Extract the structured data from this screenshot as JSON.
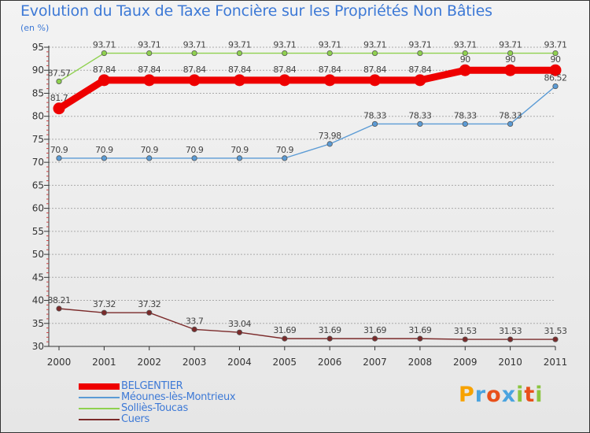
{
  "header": {
    "title": "Evolution du Taux de Taxe Foncière sur les Propriétés Non Bâties",
    "unit": "(en %)"
  },
  "colors": {
    "BELGENTIER": "#ee0000",
    "Méounes-lès-Montrieux": "#5b9bd5",
    "Solliès-Toucas": "#8fd14f",
    "Cuers": "#7b2a2a",
    "grid": "#aaaaaa",
    "label_text": "#3d79d6"
  },
  "logo": {
    "letters": [
      "P",
      "r",
      "o",
      "x",
      "i",
      "t",
      "i"
    ],
    "colors": [
      "#f7a200",
      "#4aa3df",
      "#e8501a",
      "#4aa3df",
      "#8bc540",
      "#e8501a",
      "#8bc540"
    ]
  },
  "chart_data": {
    "type": "line",
    "title": "Evolution du Taux de Taxe Foncière sur les Propriétés Non Bâties",
    "ylabel": "(en %)",
    "xlabel": "",
    "ylim": [
      30,
      95
    ],
    "yticks": [
      30,
      35,
      40,
      45,
      50,
      55,
      60,
      65,
      70,
      75,
      80,
      85,
      90,
      95
    ],
    "grid": "horizontal dashed",
    "categories": [
      "2000",
      "2001",
      "2002",
      "2003",
      "2004",
      "2005",
      "2006",
      "2007",
      "2008",
      "2009",
      "2010",
      "2011"
    ],
    "series": [
      {
        "name": "BELGENTIER",
        "values": [
          81.7,
          87.84,
          87.84,
          87.84,
          87.84,
          87.84,
          87.84,
          87.84,
          87.84,
          90,
          90,
          90
        ],
        "labels": [
          "81.7",
          "87.84",
          "87.84",
          "87.84",
          "87.84",
          "87.84",
          "87.84",
          "87.84",
          "87.84",
          "90",
          "90",
          "90"
        ],
        "style": "thick"
      },
      {
        "name": "Méounes-lès-Montrieux",
        "values": [
          70.9,
          70.9,
          70.9,
          70.9,
          70.9,
          70.9,
          73.98,
          78.33,
          78.33,
          78.33,
          78.33,
          86.52
        ],
        "labels": [
          "70.9",
          "70.9",
          "70.9",
          "70.9",
          "70.9",
          "70.9",
          "73.98",
          "78.33",
          "78.33",
          "78.33",
          "78.33",
          "86.52"
        ],
        "style": "thin"
      },
      {
        "name": "Solliès-Toucas",
        "values": [
          87.57,
          93.71,
          93.71,
          93.71,
          93.71,
          93.71,
          93.71,
          93.71,
          93.71,
          93.71,
          93.71,
          93.71
        ],
        "labels": [
          "87.57",
          "93.71",
          "93.71",
          "93.71",
          "93.71",
          "93.71",
          "93.71",
          "93.71",
          "93.71",
          "93.71",
          "93.71",
          "93.71"
        ],
        "style": "thin"
      },
      {
        "name": "Cuers",
        "values": [
          38.21,
          37.32,
          37.32,
          33.7,
          33.04,
          31.69,
          31.69,
          31.69,
          31.69,
          31.53,
          31.53,
          31.53
        ],
        "labels": [
          "38.21",
          "37.32",
          "37.32",
          "33.7",
          "33.04",
          "31.69",
          "31.69",
          "31.69",
          "31.69",
          "31.53",
          "31.53",
          "31.53"
        ],
        "style": "thin"
      }
    ],
    "legend": {
      "position": "bottom-left",
      "entries": [
        "BELGENTIER",
        "Méounes-lès-Montrieux",
        "Solliès-Toucas",
        "Cuers"
      ]
    }
  }
}
